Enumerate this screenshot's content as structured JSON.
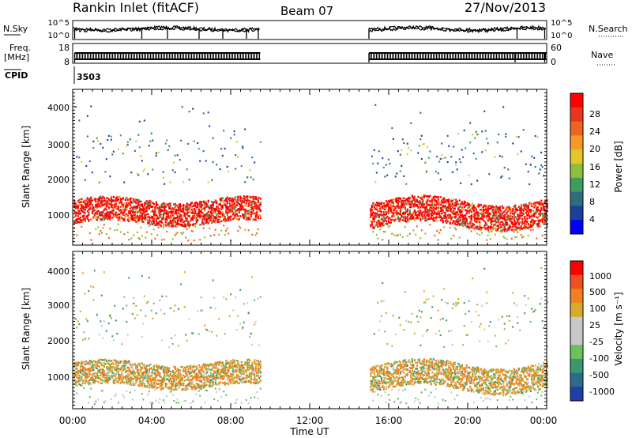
{
  "header": {
    "title": "Rankin Inlet (fitACF)",
    "beam": "Beam 07",
    "date": "27/Nov/2013"
  },
  "colors": {
    "power_scale": [
      "#0000ff",
      "#1c3f9c",
      "#2e6e7c",
      "#3f9b5e",
      "#8fbe3c",
      "#e2c62a",
      "#f59b25",
      "#ee6420",
      "#e83420",
      "#ff0000"
    ],
    "velocity_scale": [
      "#1f3fa8",
      "#2c6b8a",
      "#3b9770",
      "#69c25a",
      "#c8c8c8",
      "#c8c8c8",
      "#d9a92a",
      "#f08020",
      "#f05020",
      "#ff0000"
    ]
  },
  "chart_data": [
    {
      "type": "line",
      "name": "nsky-nsearch-panel",
      "left_label": "N.Sky",
      "right_label": "N.Search",
      "left_ticks": [
        "10^5",
        "10^0"
      ],
      "right_ticks": [
        "10^5",
        "10^0"
      ],
      "right_style": "dotted",
      "data_gap_hours": [
        9.5,
        15.0
      ]
    },
    {
      "type": "line",
      "name": "freq-nave-panel",
      "left_label_line1": "Freq.",
      "left_label_line2": "[MHz]",
      "right_label": "Nave",
      "left_ticks": [
        "18",
        "8"
      ],
      "right_ticks": [
        "60",
        "0"
      ],
      "right_style": "dotted"
    },
    {
      "type": "line",
      "name": "cpid-panel",
      "label": "CPID",
      "value": "3503"
    },
    {
      "type": "heatmap",
      "name": "power",
      "ylabel": "Slant Range [km]",
      "yticks": [
        "4000",
        "3000",
        "2000",
        "1000"
      ],
      "ylim": [
        200,
        4500
      ],
      "colorbar_label": "Power [dB]",
      "colorbar_ticks": [
        "28",
        "24",
        "20",
        "16",
        "12",
        "8",
        "4"
      ],
      "data_gap_hours": [
        9.5,
        15.0
      ]
    },
    {
      "type": "heatmap",
      "name": "velocity",
      "ylabel": "Slant Range [km]",
      "yticks": [
        "4000",
        "3000",
        "2000",
        "1000"
      ],
      "ylim": [
        200,
        4500
      ],
      "colorbar_label": "Velocity [m s⁻¹]",
      "colorbar_ticks": [
        "1000",
        "500",
        "100",
        "25",
        "-25",
        "-100",
        "-500",
        "-1000"
      ],
      "data_gap_hours": [
        9.5,
        15.0
      ]
    }
  ],
  "xaxis": {
    "label": "Time UT",
    "ticks": [
      "00:00",
      "04:00",
      "08:00",
      "12:00",
      "16:00",
      "20:00",
      "00:00"
    ],
    "range_hours": [
      0,
      24
    ]
  }
}
